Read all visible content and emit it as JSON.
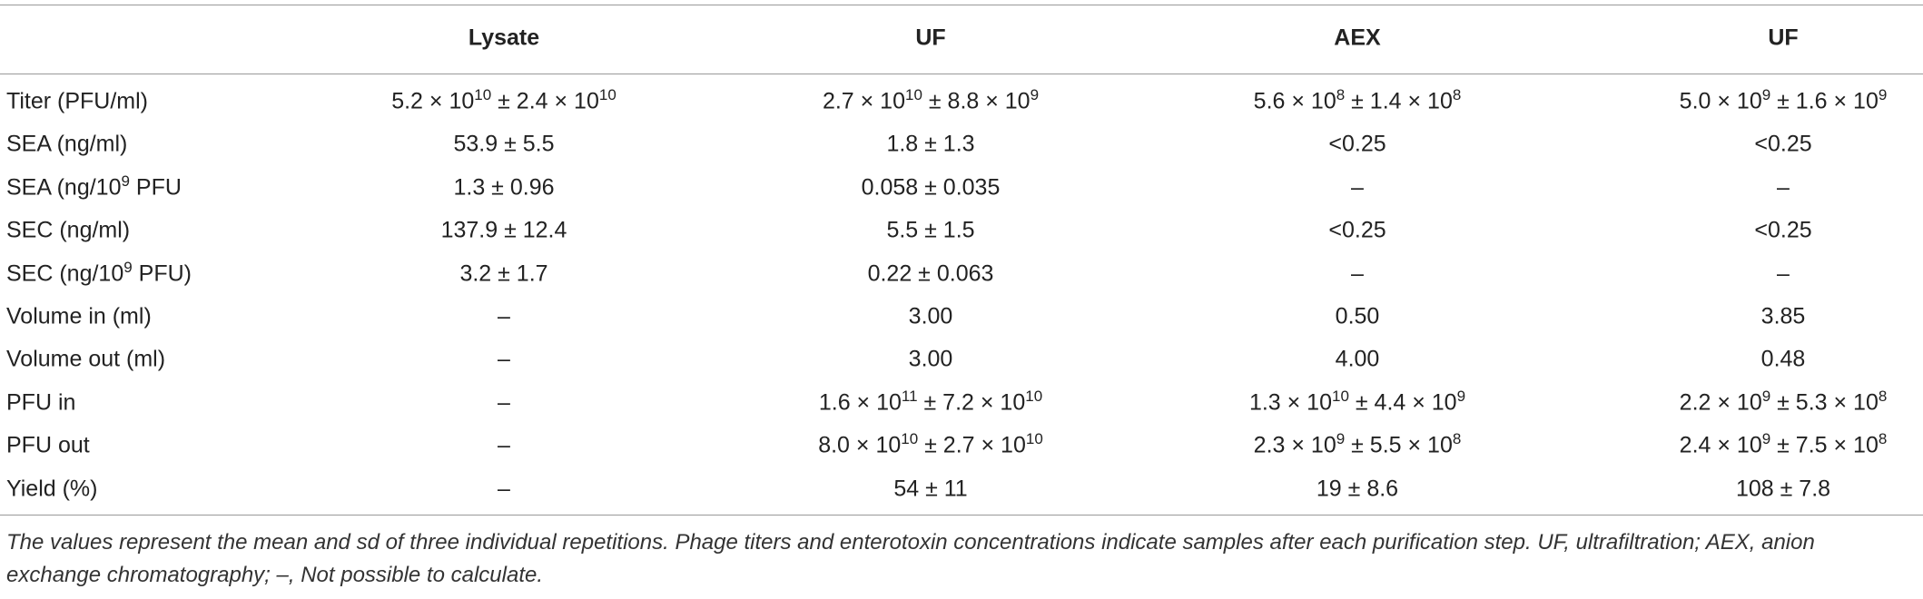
{
  "table": {
    "columns": [
      "Lysate",
      "UF",
      "AEX",
      "UF"
    ],
    "rows": [
      {
        "label": "Titer (PFU/ml)",
        "cells": [
          [
            {
              "text": "5.2 × 10"
            },
            {
              "text": "10",
              "sup": true
            },
            {
              "text": " ± 2.4 × 10"
            },
            {
              "text": "10",
              "sup": true
            }
          ],
          [
            {
              "text": "2.7 × 10"
            },
            {
              "text": "10",
              "sup": true
            },
            {
              "text": " ± 8.8 × 10"
            },
            {
              "text": "9",
              "sup": true
            }
          ],
          [
            {
              "text": "5.6 × 10"
            },
            {
              "text": "8",
              "sup": true
            },
            {
              "text": " ± 1.4 × 10"
            },
            {
              "text": "8",
              "sup": true
            }
          ],
          [
            {
              "text": "5.0 × 10"
            },
            {
              "text": "9",
              "sup": true
            },
            {
              "text": " ± 1.6 × 10"
            },
            {
              "text": "9",
              "sup": true
            }
          ]
        ]
      },
      {
        "label": "SEA (ng/ml)",
        "cells": [
          "53.9 ± 5.5",
          "1.8 ± 1.3",
          "<0.25",
          "<0.25"
        ]
      },
      {
        "label": [
          {
            "text": "SEA (ng/10"
          },
          {
            "text": "9",
            "sup": true
          },
          {
            "text": " PFU"
          }
        ],
        "cells": [
          "1.3 ± 0.96",
          "0.058 ± 0.035",
          "–",
          "–"
        ]
      },
      {
        "label": "SEC (ng/ml)",
        "cells": [
          "137.9 ± 12.4",
          "5.5 ± 1.5",
          "<0.25",
          "<0.25"
        ]
      },
      {
        "label": [
          {
            "text": "SEC (ng/10"
          },
          {
            "text": "9",
            "sup": true
          },
          {
            "text": " PFU)"
          }
        ],
        "cells": [
          "3.2 ± 1.7",
          "0.22 ± 0.063",
          "–",
          "–"
        ]
      },
      {
        "label": "Volume in (ml)",
        "cells": [
          "–",
          "3.00",
          "0.50",
          "3.85"
        ]
      },
      {
        "label": "Volume out (ml)",
        "cells": [
          "–",
          "3.00",
          "4.00",
          "0.48"
        ]
      },
      {
        "label": "PFU in",
        "cells": [
          "–",
          [
            {
              "text": "1.6 × 10"
            },
            {
              "text": "11",
              "sup": true
            },
            {
              "text": " ± 7.2 × 10"
            },
            {
              "text": "10",
              "sup": true
            }
          ],
          [
            {
              "text": "1.3 × 10"
            },
            {
              "text": "10",
              "sup": true
            },
            {
              "text": " ± 4.4 × 10"
            },
            {
              "text": "9",
              "sup": true
            }
          ],
          [
            {
              "text": "2.2 × 10"
            },
            {
              "text": "9",
              "sup": true
            },
            {
              "text": " ± 5.3 × 10"
            },
            {
              "text": "8",
              "sup": true
            }
          ]
        ]
      },
      {
        "label": "PFU out",
        "cells": [
          "–",
          [
            {
              "text": "8.0 × 10"
            },
            {
              "text": "10",
              "sup": true
            },
            {
              "text": " ± 2.7 × 10"
            },
            {
              "text": "10",
              "sup": true
            }
          ],
          [
            {
              "text": "2.3 × 10"
            },
            {
              "text": "9",
              "sup": true
            },
            {
              "text": " ± 5.5 × 10"
            },
            {
              "text": "8",
              "sup": true
            }
          ],
          [
            {
              "text": "2.4 × 10"
            },
            {
              "text": "9",
              "sup": true
            },
            {
              "text": " ± 7.5 × 10"
            },
            {
              "text": "8",
              "sup": true
            }
          ]
        ]
      },
      {
        "label": "Yield (%)",
        "cells": [
          "–",
          "54 ± 11",
          "19 ± 8.6",
          "108 ± 7.8"
        ]
      }
    ],
    "footnote": "The values represent the mean and sd of three individual repetitions. Phage titers and enterotoxin concentrations indicate samples after each purification step. UF, ultrafiltration; AEX, anion exchange chromatography; –, Not possible to calculate."
  }
}
